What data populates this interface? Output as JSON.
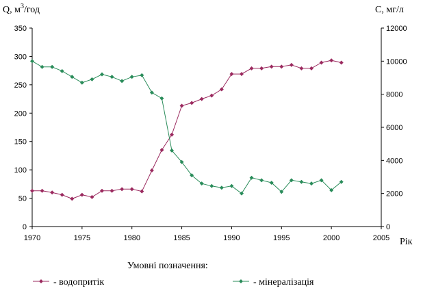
{
  "chart_data": {
    "type": "line",
    "y_left_label": "Q, м",
    "y_left_label_sup": "3",
    "y_left_label_tail": "/год",
    "y_right_label": "С, мг/л",
    "x_label": "Рік",
    "xlim": [
      1970,
      2005
    ],
    "ylim_left": [
      0,
      350
    ],
    "ylim_right": [
      0,
      12000
    ],
    "x_ticks": [
      1970,
      1975,
      1980,
      1985,
      1990,
      1995,
      2000,
      2005
    ],
    "y_left_ticks": [
      0,
      50,
      100,
      150,
      200,
      250,
      300,
      350
    ],
    "y_right_ticks": [
      0,
      2000,
      4000,
      6000,
      8000,
      10000,
      12000
    ],
    "legend_title": "Умовні позначення:",
    "legend_position": "bottom",
    "grid": false,
    "series": [
      {
        "name": "- водопритік",
        "axis": "left",
        "color": "#9b2a5f",
        "marker": "diamond",
        "x": [
          1970,
          1971,
          1972,
          1973,
          1974,
          1975,
          1976,
          1977,
          1978,
          1979,
          1980,
          1981,
          1982,
          1983,
          1984,
          1985,
          1986,
          1987,
          1988,
          1989,
          1990,
          1991,
          1992,
          1993,
          1994,
          1995,
          1996,
          1997,
          1998,
          1999,
          2000,
          2001
        ],
        "values": [
          63,
          63,
          60,
          56,
          49,
          56,
          52,
          63,
          63,
          66,
          66,
          62,
          99,
          135,
          162,
          213,
          218,
          225,
          231,
          242,
          269,
          269,
          279,
          279,
          282,
          282,
          285,
          279,
          279,
          289,
          293,
          289
        ]
      },
      {
        "name": "- мінералізація",
        "axis": "right",
        "color": "#2a8c5a",
        "marker": "diamond",
        "x": [
          1970,
          1971,
          1972,
          1973,
          1974,
          1975,
          1976,
          1977,
          1978,
          1979,
          1980,
          1981,
          1982,
          1983,
          1984,
          1985,
          1986,
          1987,
          1988,
          1989,
          1990,
          1991,
          1992,
          1993,
          1994,
          1995,
          1996,
          1997,
          1998,
          1999,
          2000,
          2001
        ],
        "values": [
          10000,
          9650,
          9650,
          9400,
          9050,
          8700,
          8900,
          9200,
          9050,
          8800,
          9050,
          9150,
          8100,
          7750,
          4600,
          3900,
          3100,
          2600,
          2450,
          2350,
          2450,
          2000,
          2950,
          2800,
          2650,
          2100,
          2800,
          2700,
          2600,
          2800,
          2200,
          2700
        ]
      }
    ]
  }
}
